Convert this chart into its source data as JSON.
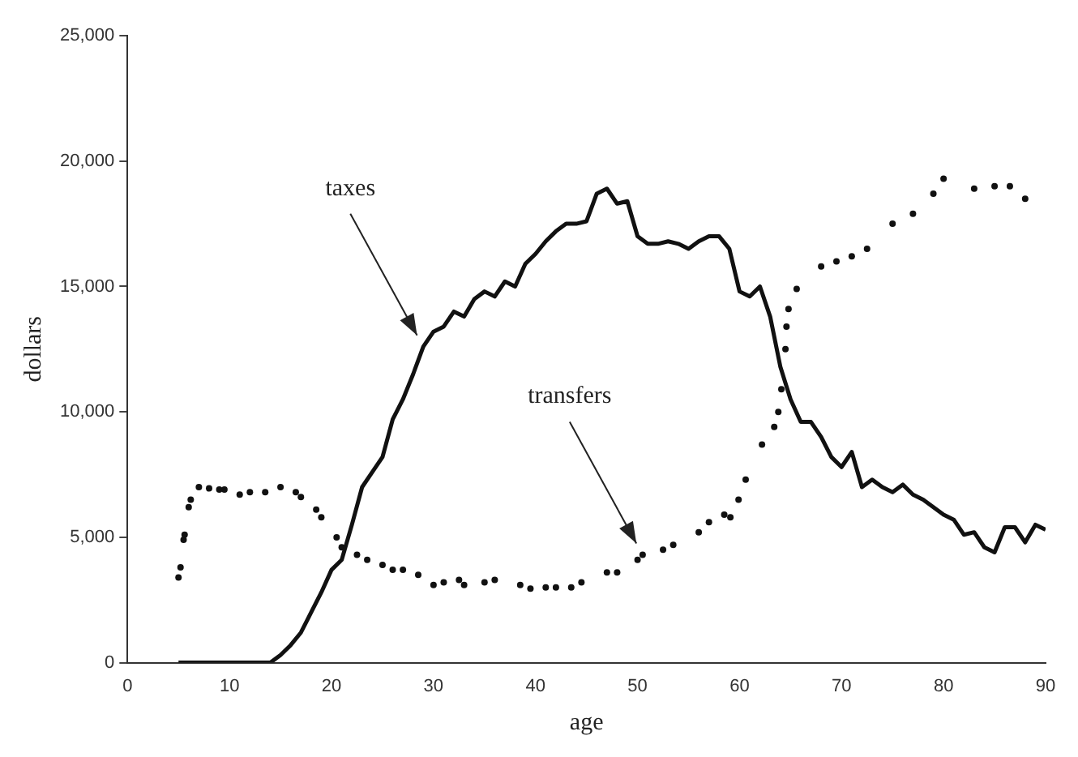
{
  "chart_data": {
    "type": "line",
    "xlabel": "age",
    "ylabel": "dollars",
    "xlim": [
      0,
      90
    ],
    "xticks": [
      0,
      10,
      20,
      30,
      40,
      50,
      60,
      70,
      80,
      90
    ],
    "ylim": [
      0,
      25000
    ],
    "yticks": [
      0,
      {
        "value": 5000,
        "label": "5,000"
      },
      {
        "value": 10000,
        "label": "10,000"
      },
      {
        "value": 15000,
        "label": "15,000"
      },
      {
        "value": 20000,
        "label": "20,000"
      },
      {
        "value": 25000,
        "label": "25,000"
      }
    ],
    "grid": false,
    "legend": false,
    "series": [
      {
        "type": "line",
        "color": "#111111",
        "marker": "none",
        "x": [
          5,
          6,
          7,
          8,
          9,
          10,
          11,
          12,
          13,
          14,
          15,
          16,
          17,
          18,
          19,
          20,
          21,
          22,
          23,
          24,
          25,
          26,
          27,
          28,
          29,
          30,
          31,
          32,
          33,
          34,
          35,
          36,
          37,
          38,
          39,
          40,
          41,
          42,
          43,
          44,
          45,
          46,
          47,
          48,
          49,
          50,
          51,
          52,
          53,
          54,
          55,
          56,
          57,
          58,
          59,
          60,
          61,
          62,
          63,
          64,
          65,
          66,
          67,
          68,
          69,
          70,
          71,
          72,
          73,
          74,
          75,
          76,
          77,
          78,
          79,
          80,
          81,
          82,
          83,
          84,
          85,
          86,
          87,
          88,
          89,
          90
        ],
        "values": [
          0,
          0,
          0,
          0,
          0,
          0,
          0,
          0,
          0,
          0,
          300,
          700,
          1200,
          2000,
          2800,
          3700,
          4100,
          5500,
          7000,
          7600,
          8200,
          9700,
          10500,
          11500,
          12600,
          13200,
          13400,
          14000,
          13800,
          14500,
          14800,
          14600,
          15200,
          15000,
          15900,
          16300,
          16800,
          17200,
          17500,
          17500,
          17600,
          18700,
          18900,
          18300,
          18400,
          17000,
          16700,
          16700,
          16800,
          16700,
          16500,
          16800,
          17000,
          17000,
          16500,
          14800,
          14600,
          15000,
          13800,
          11800,
          10500,
          9600,
          9600,
          9000,
          8200,
          7800,
          8400,
          7000,
          7300,
          7000,
          6800,
          7100,
          6700,
          6500,
          6200,
          5900,
          5700,
          5100,
          5200,
          4600,
          4400,
          5400,
          5400,
          4800,
          5500,
          5300
        ]
      },
      {
        "type": "scatter",
        "color": "#111111",
        "marker": "circle",
        "x": [
          5,
          5.2,
          5.5,
          5.6,
          6,
          6.2,
          7,
          8,
          9,
          9.5,
          11,
          12,
          13.5,
          15,
          16.5,
          17,
          18.5,
          19,
          20.5,
          21,
          22.5,
          23.5,
          25,
          26,
          27,
          28.5,
          30,
          31,
          32.5,
          33,
          35,
          36,
          38.5,
          39.5,
          41,
          42,
          43.5,
          44.5,
          47,
          48,
          50,
          50.5,
          52.5,
          53.5,
          56,
          57,
          58.5,
          59.1,
          59.9,
          60.6,
          62.2,
          63.4,
          63.8,
          64.1,
          64.5,
          64.6,
          64.8,
          65.6,
          68,
          69.5,
          71,
          72.5,
          75,
          77,
          79,
          80,
          83,
          85,
          86.5,
          88
        ],
        "values": [
          3400,
          3800,
          4900,
          5100,
          6200,
          6500,
          7000,
          6950,
          6900,
          6900,
          6700,
          6800,
          6800,
          7000,
          6800,
          6600,
          6100,
          5800,
          5000,
          4600,
          4300,
          4100,
          3900,
          3700,
          3700,
          3500,
          3100,
          3200,
          3300,
          3100,
          3200,
          3300,
          3100,
          2950,
          3000,
          3000,
          3000,
          3200,
          3600,
          3600,
          4100,
          4300,
          4500,
          4700,
          5200,
          5600,
          5900,
          5800,
          6500,
          7300,
          8700,
          9400,
          10000,
          10900,
          12500,
          13400,
          14100,
          14900,
          15800,
          16000,
          16200,
          16500,
          17500,
          17900,
          18700,
          19300,
          18900,
          19000,
          19000,
          18500
        ]
      }
    ],
    "annotations": [
      {
        "text": "taxes",
        "x": 29,
        "y": 12600
      },
      {
        "text": "transfers",
        "x": 50.5,
        "y": 4300
      }
    ]
  }
}
